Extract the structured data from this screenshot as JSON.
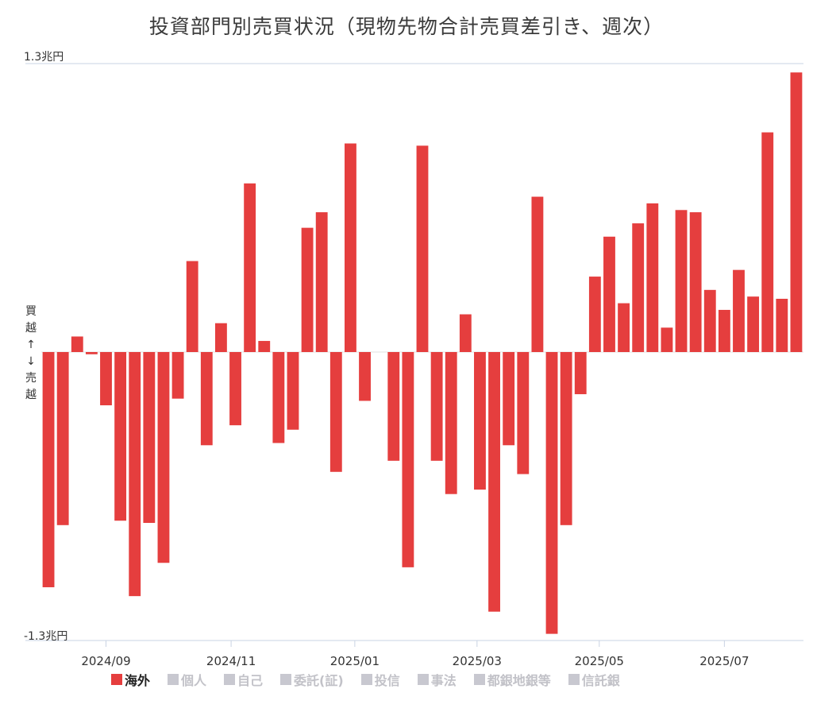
{
  "chart_data": {
    "type": "bar",
    "title": "投資部門別売買状況（現物先物合計売買差引き、週次）",
    "ylabel_top": [
      "買",
      "越",
      "↑"
    ],
    "ylabel_bottom": [
      "↓",
      "売",
      "越"
    ],
    "y_top_label": "1.3兆円",
    "y_bottom_label": "-1.3兆円",
    "ylim": [
      -1.3,
      1.3
    ],
    "unit": "兆円",
    "x_tick_labels": [
      "2024/09",
      "2024/11",
      "2025/01",
      "2025/03",
      "2025/05",
      "2025/07"
    ],
    "x_tick_positions": [
      4.5,
      13.2,
      21.8,
      30.3,
      38.8,
      47.5
    ],
    "grid": false,
    "series": [
      {
        "name": "海外",
        "color": "#e53e3e",
        "active": true,
        "values": [
          -1.06,
          -0.78,
          0.07,
          -0.01,
          -0.24,
          -0.76,
          -1.1,
          -0.77,
          -0.95,
          -0.21,
          0.41,
          -0.42,
          0.13,
          -0.33,
          0.76,
          0.05,
          -0.41,
          -0.35,
          0.56,
          0.63,
          -0.54,
          0.94,
          -0.22,
          0.0,
          -0.49,
          -0.97,
          0.93,
          -0.49,
          -0.64,
          0.17,
          -0.62,
          -1.17,
          -0.42,
          -0.55,
          0.7,
          -1.27,
          -0.78,
          -0.19,
          0.34,
          0.52,
          0.22,
          0.58,
          0.67,
          0.11,
          0.64,
          0.63,
          0.28,
          0.19,
          0.37,
          0.25,
          0.99,
          0.24,
          1.26
        ]
      }
    ],
    "legend": [
      {
        "name": "海外",
        "color": "#e53e3e",
        "active": true
      },
      {
        "name": "個人",
        "color": "#c8c8d0",
        "active": false
      },
      {
        "name": "自己",
        "color": "#c8c8d0",
        "active": false
      },
      {
        "name": "委託(証)",
        "color": "#c8c8d0",
        "active": false
      },
      {
        "name": "投信",
        "color": "#c8c8d0",
        "active": false
      },
      {
        "name": "事法",
        "color": "#c8c8d0",
        "active": false
      },
      {
        "name": "都銀地銀等",
        "color": "#c8c8d0",
        "active": false
      },
      {
        "name": "信託銀",
        "color": "#c8c8d0",
        "active": false
      }
    ]
  }
}
